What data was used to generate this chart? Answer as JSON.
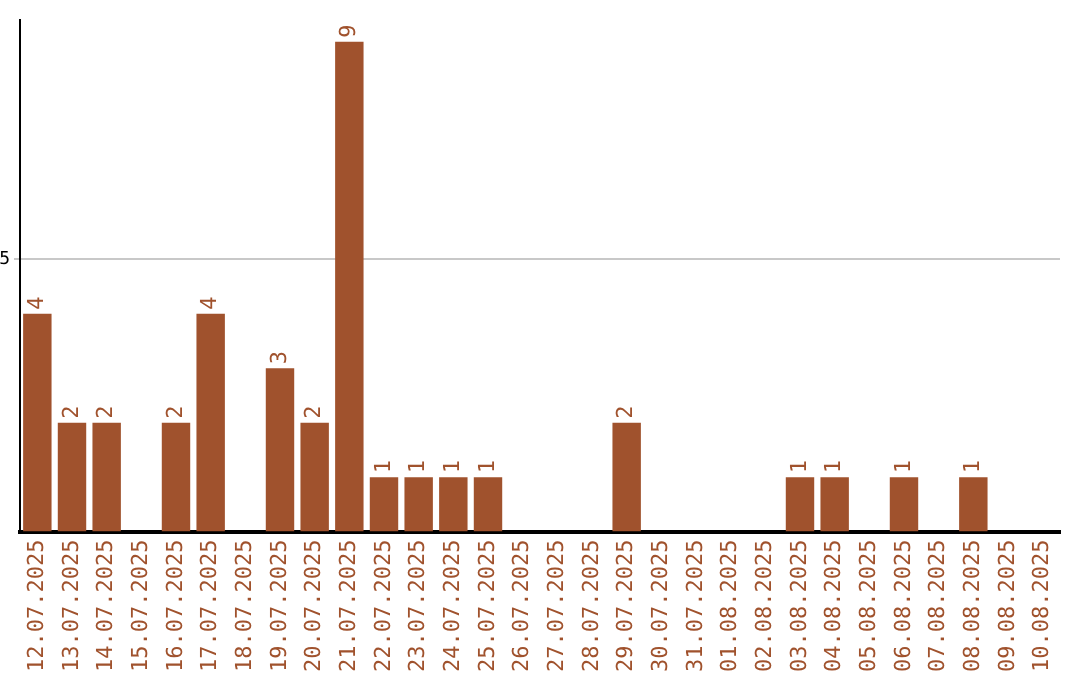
{
  "chart_data": {
    "type": "bar",
    "categories": [
      "12.07.2025",
      "13.07.2025",
      "14.07.2025",
      "15.07.2025",
      "16.07.2025",
      "17.07.2025",
      "18.07.2025",
      "19.07.2025",
      "20.07.2025",
      "21.07.2025",
      "22.07.2025",
      "23.07.2025",
      "24.07.2025",
      "25.07.2025",
      "26.07.2025",
      "27.07.2025",
      "28.07.2025",
      "29.07.2025",
      "30.07.2025",
      "31.07.2025",
      "01.08.2025",
      "02.08.2025",
      "03.08.2025",
      "04.08.2025",
      "05.08.2025",
      "06.08.2025",
      "07.08.2025",
      "08.08.2025",
      "09.08.2025",
      "10.08.2025"
    ],
    "values": [
      4,
      2,
      2,
      0,
      2,
      4,
      0,
      3,
      2,
      9,
      1,
      1,
      1,
      1,
      0,
      0,
      0,
      2,
      0,
      0,
      0,
      0,
      1,
      1,
      0,
      1,
      0,
      1,
      0,
      0
    ],
    "value_labels": [
      "4",
      "2",
      "2",
      null,
      "2",
      "4",
      null,
      "3",
      "2",
      "9",
      "1",
      "1",
      "1",
      "1",
      null,
      null,
      null,
      "2",
      null,
      null,
      null,
      null,
      "1",
      "1",
      null,
      "1",
      null,
      "1",
      null,
      null
    ],
    "color": "#a0522d",
    "ylim": [
      0,
      9.4
    ],
    "yticks": [
      5
    ],
    "grid": "y"
  }
}
